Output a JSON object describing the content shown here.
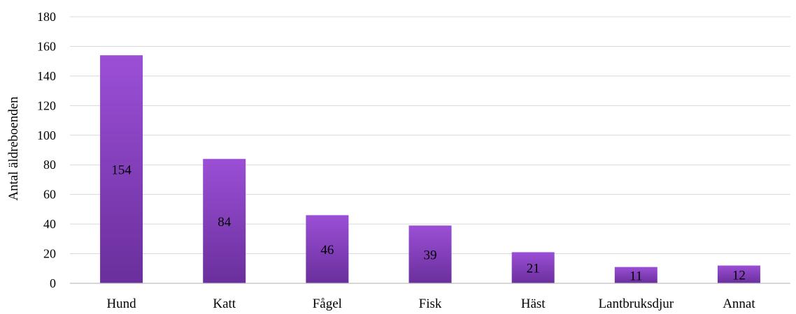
{
  "chart_data": {
    "type": "bar",
    "title": "",
    "xlabel": "",
    "ylabel": "Antal äldreboenden",
    "categories": [
      "Hund",
      "Katt",
      "Fågel",
      "Fisk",
      "Häst",
      "Lantbruksdjur",
      "Annat"
    ],
    "values": [
      154,
      84,
      46,
      39,
      21,
      11,
      12
    ],
    "data_labels": [
      "154",
      "84",
      "46",
      "39",
      "21",
      "11",
      "12"
    ],
    "ylim": [
      0,
      180
    ],
    "yticks": [
      0,
      20,
      40,
      60,
      80,
      100,
      120,
      140,
      160,
      180
    ],
    "grid": true,
    "legend": "none",
    "colors": {
      "bar_top": "#9b4fd6",
      "bar_bottom": "#6a2f9c",
      "grid": "#d9d9d9",
      "axis": "#bfbfbf"
    }
  }
}
